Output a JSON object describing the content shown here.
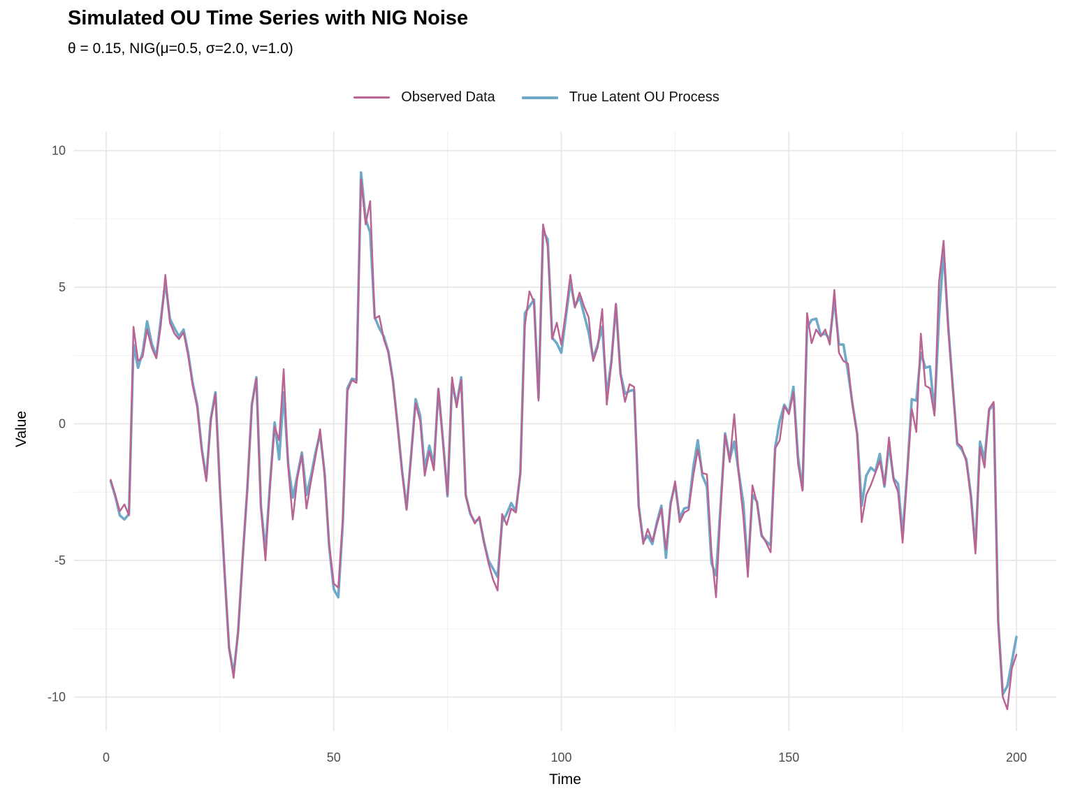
{
  "title": "Simulated OU Time Series with NIG Noise",
  "subtitle": "θ = 0.15, NIG(μ=0.5, σ=2.0, v=1.0)",
  "legend": {
    "items": [
      {
        "label": "Observed Data",
        "color": "#B96492"
      },
      {
        "label": "True Latent OU Process",
        "color": "#6FA9C8"
      }
    ]
  },
  "axes": {
    "x_title": "Time",
    "y_title": "Value"
  },
  "colors": {
    "background": "#ffffff",
    "grid_major": "#e7e7e7",
    "grid_minor": "#f2f2f2",
    "tick_text": "#4d4d4d",
    "observed": "#B96492",
    "latent": "#6FA9C8"
  },
  "chart_data": {
    "type": "line",
    "title": "Simulated OU Time Series with NIG Noise",
    "subtitle": "θ = 0.15, NIG(μ=0.5, σ=2.0, v=1.0)",
    "xlabel": "Time",
    "ylabel": "Value",
    "xlim": [
      0,
      200
    ],
    "ylim": [
      -10.5,
      10
    ],
    "x_ticks": [
      0,
      50,
      100,
      150,
      200
    ],
    "x_minor_ticks": [
      25,
      75,
      125,
      175
    ],
    "y_ticks": [
      -10,
      -5,
      0,
      5,
      10
    ],
    "y_minor_ticks": [
      -7.5,
      -2.5,
      2.5,
      7.5
    ],
    "grid": true,
    "legend_position": "top-center",
    "x": {
      "start": 1,
      "step": 1,
      "n": 200
    },
    "series": [
      {
        "name": "Observed Data",
        "color": "#B96492",
        "stroke_width": 2.5,
        "values": [
          -2.05,
          -2.6,
          -3.2,
          -2.95,
          -3.35,
          3.55,
          2.3,
          2.45,
          3.45,
          2.8,
          2.4,
          3.6,
          5.45,
          3.7,
          3.3,
          3.1,
          3.35,
          2.5,
          1.4,
          0.6,
          -1.0,
          -2.1,
          0.1,
          1.1,
          -2.4,
          -5.4,
          -8.2,
          -9.3,
          -7.6,
          -4.9,
          -2.4,
          0.65,
          1.65,
          -3.1,
          -5.0,
          -2.3,
          -0.1,
          -0.6,
          2.0,
          -1.6,
          -3.5,
          -2.0,
          -1.15,
          -3.1,
          -2.1,
          -1.2,
          -0.2,
          -1.9,
          -4.4,
          -5.85,
          -6.0,
          -3.4,
          1.2,
          1.6,
          1.5,
          8.95,
          7.3,
          8.15,
          3.85,
          3.95,
          3.1,
          2.6,
          1.55,
          -0.05,
          -1.75,
          -3.15,
          -1.2,
          0.75,
          0.1,
          -1.9,
          -1.0,
          -1.7,
          1.3,
          -0.7,
          -2.6,
          1.7,
          0.6,
          1.6,
          -2.65,
          -3.25,
          -3.65,
          -3.4,
          -4.35,
          -5.1,
          -5.7,
          -6.1,
          -3.3,
          -3.7,
          -3.1,
          -3.25,
          -1.75,
          3.6,
          4.85,
          4.45,
          0.85,
          7.3,
          6.5,
          3.1,
          3.7,
          2.9,
          4.1,
          5.45,
          4.25,
          4.8,
          4.3,
          3.9,
          2.3,
          2.8,
          4.2,
          0.7,
          2.2,
          4.4,
          1.8,
          0.8,
          1.45,
          1.35,
          -3.05,
          -4.4,
          -3.85,
          -4.3,
          -3.7,
          -3.1,
          -4.6,
          -3.0,
          -2.1,
          -3.6,
          -3.25,
          -3.15,
          -1.9,
          -0.95,
          -1.8,
          -1.85,
          -4.7,
          -6.35,
          -3.2,
          -0.4,
          -1.4,
          0.35,
          -1.85,
          -3.4,
          -5.6,
          -2.25,
          -2.9,
          -4.05,
          -4.35,
          -4.7,
          -0.9,
          -0.6,
          0.65,
          0.35,
          1.15,
          -1.45,
          -2.45,
          4.05,
          2.95,
          3.45,
          3.2,
          3.45,
          2.9,
          4.9,
          2.6,
          2.3,
          2.2,
          0.65,
          -0.4,
          -3.6,
          -2.6,
          -2.25,
          -1.8,
          -1.35,
          -2.25,
          -0.5,
          -2.05,
          -2.5,
          -4.35,
          -1.9,
          0.55,
          -0.3,
          3.3,
          1.4,
          1.3,
          0.3,
          5.2,
          6.7,
          3.5,
          1.3,
          -0.7,
          -0.85,
          -1.4,
          -2.7,
          -4.75,
          -0.85,
          -1.6,
          0.55,
          0.8,
          -7.3,
          -10.0,
          -10.45,
          -8.95,
          -8.45
        ]
      },
      {
        "name": "True Latent OU Process",
        "color": "#6FA9C8",
        "stroke_width": 3.6,
        "values": [
          -2.1,
          -2.65,
          -3.35,
          -3.5,
          -3.3,
          2.9,
          2.05,
          2.6,
          3.75,
          2.95,
          2.45,
          3.8,
          5.2,
          3.85,
          3.5,
          3.2,
          3.45,
          2.6,
          1.5,
          0.7,
          -0.9,
          -2.0,
          0.2,
          1.15,
          -2.4,
          -5.4,
          -8.2,
          -9.15,
          -7.6,
          -4.9,
          -2.4,
          0.7,
          1.7,
          -3.0,
          -4.65,
          -2.2,
          0.05,
          -1.3,
          1.15,
          -1.5,
          -2.7,
          -1.9,
          -1.05,
          -2.6,
          -1.9,
          -1.05,
          -0.35,
          -1.8,
          -4.5,
          -6.05,
          -6.35,
          -3.6,
          1.3,
          1.65,
          1.6,
          9.2,
          7.5,
          7.0,
          3.9,
          3.5,
          3.2,
          2.65,
          1.6,
          0.0,
          -1.7,
          -3.1,
          -1.15,
          0.9,
          0.3,
          -1.65,
          -0.8,
          -1.5,
          1.25,
          -0.6,
          -2.65,
          1.5,
          0.7,
          1.7,
          -2.6,
          -3.3,
          -3.6,
          -3.45,
          -4.3,
          -5.0,
          -5.3,
          -5.6,
          -3.6,
          -3.3,
          -2.9,
          -3.2,
          -1.8,
          4.05,
          4.3,
          4.55,
          0.95,
          7.05,
          6.75,
          3.15,
          2.95,
          2.6,
          3.9,
          5.2,
          4.3,
          4.65,
          4.0,
          3.35,
          2.4,
          2.9,
          3.55,
          1.05,
          2.3,
          4.35,
          1.85,
          1.1,
          1.2,
          1.25,
          -3.0,
          -4.3,
          -4.1,
          -4.4,
          -3.6,
          -3.0,
          -4.9,
          -2.9,
          -2.2,
          -3.45,
          -3.1,
          -3.05,
          -1.6,
          -0.6,
          -1.9,
          -2.3,
          -5.1,
          -5.55,
          -3.0,
          -0.35,
          -1.3,
          -0.65,
          -1.8,
          -2.9,
          -5.35,
          -2.6,
          -2.85,
          -4.1,
          -4.3,
          -4.45,
          -0.85,
          0.1,
          0.7,
          0.4,
          1.35,
          -1.2,
          -2.4,
          3.5,
          3.8,
          3.85,
          3.25,
          3.3,
          3.1,
          4.55,
          2.9,
          2.9,
          1.9,
          0.7,
          -0.35,
          -3.0,
          -1.9,
          -1.6,
          -1.75,
          -1.1,
          -2.3,
          -0.75,
          -2.0,
          -2.2,
          -4.1,
          -1.8,
          0.9,
          0.85,
          2.6,
          2.05,
          2.1,
          0.45,
          3.9,
          6.35,
          3.6,
          1.4,
          -0.75,
          -0.95,
          -1.3,
          -2.6,
          -4.6,
          -0.65,
          -1.3,
          0.5,
          0.7,
          -7.2,
          -9.9,
          -9.6,
          -8.7,
          -7.8
        ]
      }
    ]
  }
}
